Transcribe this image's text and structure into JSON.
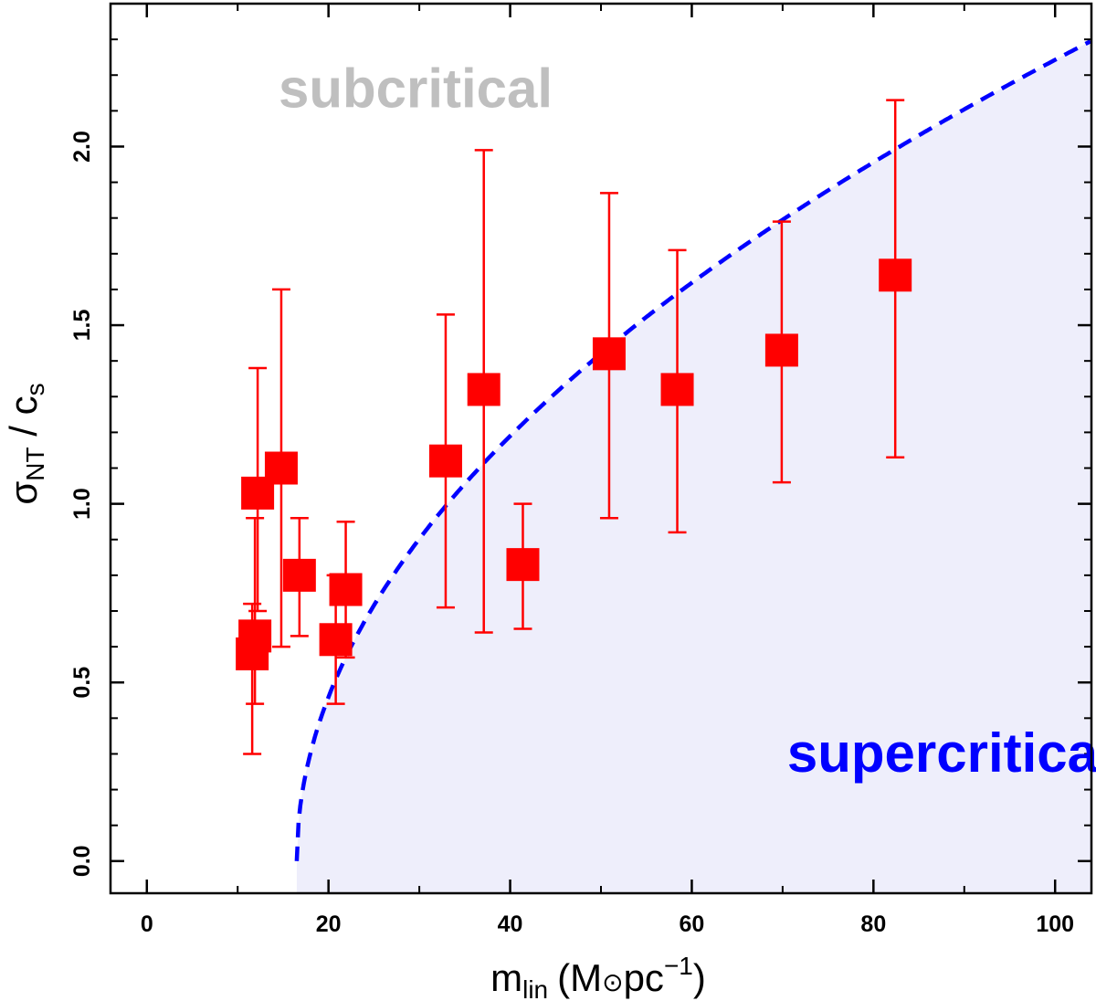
{
  "chart_data": {
    "type": "scatter",
    "title": "",
    "xlabel": {
      "main": "m",
      "main_sub": "lin",
      "paren_open": "(M",
      "sun_symbol": "⊙",
      "unit": "pc",
      "unit_sup": "−1",
      "paren_close": ")"
    },
    "ylabel": {
      "main": "σ",
      "main_sub": "NT",
      "sep": " / c",
      "den_sub": "s"
    },
    "xlim": [
      -4,
      104
    ],
    "ylim": [
      -0.09,
      2.4
    ],
    "xticks": [
      0,
      20,
      40,
      60,
      80,
      100
    ],
    "xtick_labels": [
      "0",
      "20",
      "40",
      "60",
      "80",
      "100"
    ],
    "xminor": [
      10,
      30,
      50,
      70,
      90
    ],
    "yticks": [
      0.0,
      0.5,
      1.0,
      1.5,
      2.0
    ],
    "ytick_labels": [
      "0.0",
      "0.5",
      "1.0",
      "1.5",
      "2.0"
    ],
    "yminor": [
      0.1,
      0.2,
      0.3,
      0.4,
      0.6,
      0.7,
      0.8,
      0.9,
      1.1,
      1.2,
      1.3,
      1.4,
      1.6,
      1.7,
      1.8,
      1.9,
      2.1,
      2.2,
      2.3
    ],
    "points": [
      {
        "x": 11.6,
        "y": 0.58,
        "ylow": 0.3,
        "yhigh": 0.72
      },
      {
        "x": 11.9,
        "y": 0.63,
        "ylow": 0.44,
        "yhigh": 0.96
      },
      {
        "x": 12.2,
        "y": 1.03,
        "ylow": 0.7,
        "yhigh": 1.38
      },
      {
        "x": 14.8,
        "y": 1.1,
        "ylow": 0.6,
        "yhigh": 1.6
      },
      {
        "x": 16.8,
        "y": 0.8,
        "ylow": 0.63,
        "yhigh": 0.96
      },
      {
        "x": 20.8,
        "y": 0.62,
        "ylow": 0.44,
        "yhigh": 0.8
      },
      {
        "x": 21.9,
        "y": 0.76,
        "ylow": 0.57,
        "yhigh": 0.95
      },
      {
        "x": 32.9,
        "y": 1.12,
        "ylow": 0.71,
        "yhigh": 1.53
      },
      {
        "x": 37.1,
        "y": 1.32,
        "ylow": 0.64,
        "yhigh": 1.99
      },
      {
        "x": 41.4,
        "y": 0.83,
        "ylow": 0.65,
        "yhigh": 1.0
      },
      {
        "x": 50.9,
        "y": 1.42,
        "ylow": 0.96,
        "yhigh": 1.87
      },
      {
        "x": 58.4,
        "y": 1.32,
        "ylow": 0.92,
        "yhigh": 1.71
      },
      {
        "x": 69.9,
        "y": 1.43,
        "ylow": 1.06,
        "yhigh": 1.79
      },
      {
        "x": 82.4,
        "y": 1.64,
        "ylow": 1.13,
        "yhigh": 2.13
      }
    ],
    "critical_curve": {
      "formula": "sqrt((x - x0) / k)",
      "x0": 16.5,
      "k": 16.6,
      "xmax": 104,
      "style": "dashed"
    },
    "annotations": [
      {
        "text": "subcritical",
        "x": 14.5,
        "y": 2.11,
        "color": "#bfbfbf"
      },
      {
        "text": "supercritical",
        "x": 70.5,
        "y": 0.25,
        "color": "#0000ff"
      }
    ],
    "colors": {
      "points": "#ff0000",
      "curve": "#0000ff",
      "supercritical_fill": "#eeeefb",
      "subcritical_text": "#bfbfbf",
      "supercritical_text": "#0000ff"
    }
  }
}
